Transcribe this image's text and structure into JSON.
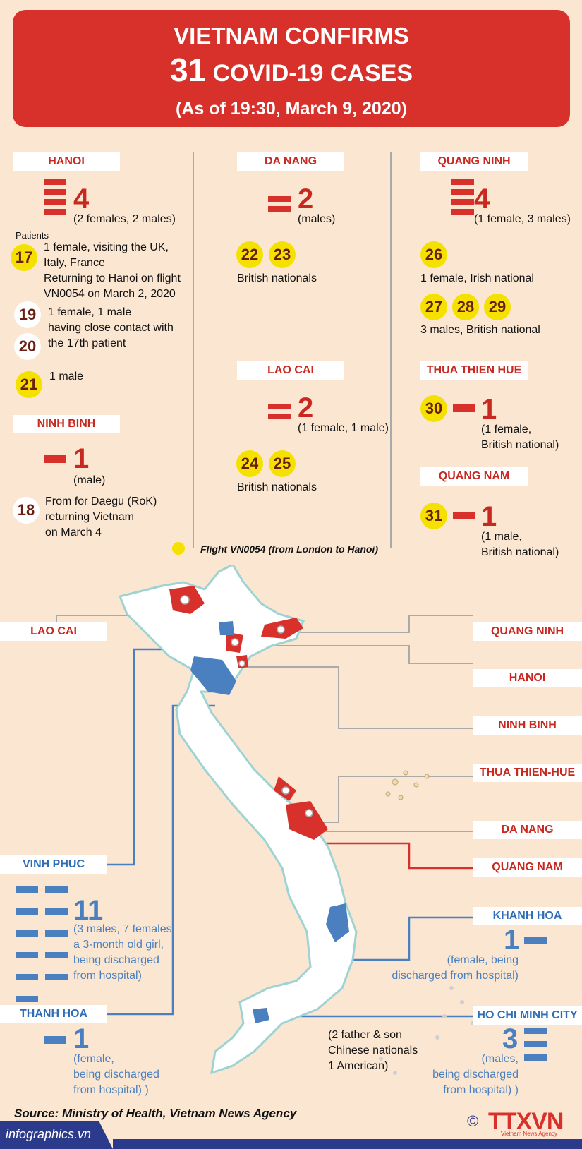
{
  "header": {
    "line1": "VIETNAM CONFIRMS",
    "count": "31",
    "line2": "COVID-19 CASES",
    "date": "(As of 19:30, March 9, 2020)"
  },
  "hanoi": {
    "label": "HANOI",
    "count": "4",
    "detail": "(2 females, 2 males)",
    "patients_label": "Patients",
    "p17": "17",
    "p17_text": [
      "1 female, visiting the UK,",
      "Italy, France",
      "Returning to Hanoi on flight",
      "VN0054 on March 2, 2020"
    ],
    "p19": "19",
    "p20": "20",
    "p19_20_text": [
      "1 female, 1 male",
      "having close contact with",
      "the 17th patient"
    ],
    "p21": "21",
    "p21_text": "1 male"
  },
  "ninhbinh": {
    "label": "NINH BINH",
    "count": "1",
    "detail": "(male)",
    "p18": "18",
    "p18_text": [
      "From for Daegu (RoK)",
      "returning Vietnam",
      "on March 4"
    ]
  },
  "danang": {
    "label": "DA NANG",
    "count": "2",
    "detail": "(males)",
    "p22": "22",
    "p23": "23",
    "nat": "British nationals"
  },
  "laocai": {
    "label": "LAO CAI",
    "count": "2",
    "detail": "(1 female, 1 male)",
    "p24": "24",
    "p25": "25",
    "nat": "British nationals"
  },
  "flight_legend": "Flight VN0054 (from London to Hanoi)",
  "quangninh": {
    "label": "QUANG NINH",
    "count": "4",
    "detail": "(1 female, 3 males)",
    "p26": "26",
    "p26_text": "1 female, Irish national",
    "p27": "27",
    "p28": "28",
    "p29": "29",
    "p27_29_text": "3 males, British national"
  },
  "hue": {
    "label": "THUA THIEN HUE",
    "p30": "30",
    "count": "1",
    "detail": [
      "(1 female,",
      "British national)"
    ]
  },
  "quangnam": {
    "label": "QUANG NAM",
    "p31": "31",
    "count": "1",
    "detail": [
      "(1 male,",
      "British national)"
    ]
  },
  "map_labels": {
    "laocai": "LAO CAI",
    "quangninh": "QUANG NINH",
    "hanoi": "HANOI",
    "ninhbinh": "NINH BINH",
    "hue": "THUA THIEN-HUE",
    "danang": "DA NANG",
    "quangnam": "QUANG NAM",
    "vinhphuc": "VINH PHUC",
    "thanhhoa": "THANH HOA",
    "khanhhoa": "KHANH HOA",
    "hcmc": "HO CHI MINH CITY"
  },
  "vinhphuc": {
    "count": "11",
    "detail": [
      "(3 males, 7 females",
      "a 3-month old girl,",
      "being discharged",
      "from hospital)"
    ]
  },
  "thanhhoa": {
    "count": "1",
    "detail": [
      "(female,",
      " being discharged",
      "from hospital) )"
    ]
  },
  "khanhhoa": {
    "count": "1",
    "detail": [
      "(female, being",
      "discharged from hospital)"
    ]
  },
  "hcmc": {
    "count": "3",
    "detail": [
      "(males,",
      "being discharged",
      "from hospital) )"
    ],
    "note": [
      "(2 father & son",
      "Chinese nationals",
      "1 American)"
    ]
  },
  "source": "Source: Ministry of Health, Vietnam News Agency",
  "footer": {
    "site": "infographics.vn",
    "copyright": "©",
    "logo": "TTXVN",
    "logo_sub": "Vietnam News Agency"
  },
  "colors": {
    "red": "#d8312b",
    "blue": "#4a80bf",
    "yellow": "#f5e100",
    "bg": "#fbe6d2"
  }
}
